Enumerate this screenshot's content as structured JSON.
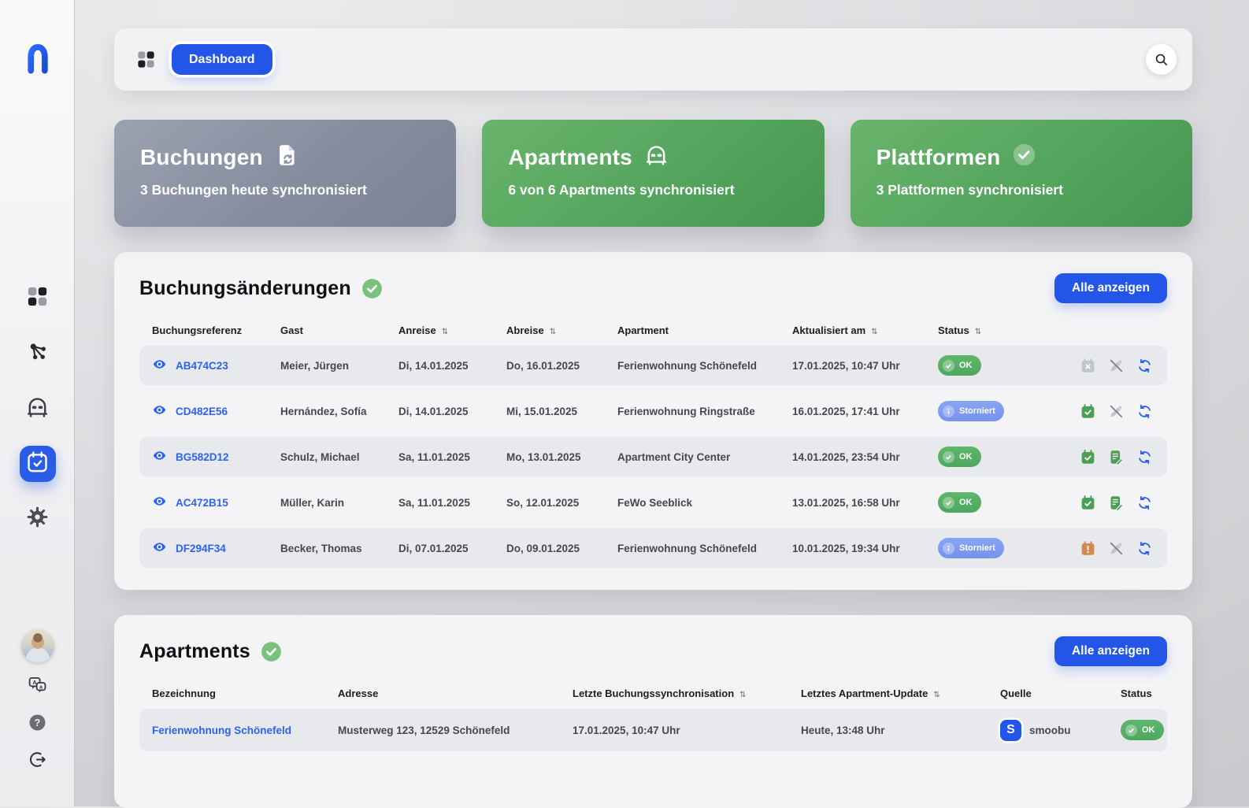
{
  "colors": {
    "accent_blue": "#2356e8",
    "link_blue": "#2d63f2",
    "green": "#4d9f58",
    "orange": "#cf8b50",
    "disabled_gray": "#c1c4ca",
    "sync_blue": "#2a62ee",
    "badge_green": "#57b168",
    "badge_storniert": "#7e9cf0",
    "card_slate": "#868d9e",
    "card_green": "#52a35c"
  },
  "sidebar": {
    "nav_items": [
      {
        "id": "dashboard",
        "icon": "grid-icon",
        "active": false
      },
      {
        "id": "connections",
        "icon": "network-icon",
        "active": false
      },
      {
        "id": "apartments",
        "icon": "bed-icon",
        "active": false
      },
      {
        "id": "bookings",
        "icon": "calendar-check-icon",
        "active": true
      },
      {
        "id": "settings",
        "icon": "gear-icon",
        "active": false
      }
    ],
    "bottom_items": [
      {
        "id": "profile",
        "icon": "avatar"
      },
      {
        "id": "language",
        "icon": "translate-icon"
      },
      {
        "id": "help",
        "icon": "help-icon"
      },
      {
        "id": "logout",
        "icon": "logout-icon"
      }
    ]
  },
  "header": {
    "nav_label": "Dashboard"
  },
  "stat_cards": [
    {
      "id": "buchungen",
      "variant": "slate",
      "title": "Buchungen",
      "icon": "document-sync-icon",
      "subtitle": "3 Buchungen heute synchronisiert"
    },
    {
      "id": "apartments",
      "variant": "green",
      "title": "Apartments",
      "icon": "bed-icon-white",
      "subtitle": "6 von 6 Apartments synchronisiert"
    },
    {
      "id": "plattformen",
      "variant": "green",
      "title": "Plattformen",
      "icon": "check-circle-icon",
      "subtitle": "3 Plattformen synchronisiert"
    }
  ],
  "bookings": {
    "title": "Buchungsänderungen",
    "action_label": "Alle anzeigen",
    "columns": [
      {
        "label": "Buchungsreferenz",
        "sortable": false
      },
      {
        "label": "Gast",
        "sortable": false
      },
      {
        "label": "Anreise",
        "sortable": true
      },
      {
        "label": "Abreise",
        "sortable": true
      },
      {
        "label": "Apartment",
        "sortable": false
      },
      {
        "label": "Aktualisiert am",
        "sortable": true
      },
      {
        "label": "Status",
        "sortable": true
      },
      {
        "label": "",
        "sortable": false
      }
    ],
    "rows": [
      {
        "ref": "AB474C23",
        "guest": "Meier, Jürgen",
        "arrival": "Di, 14.01.2025",
        "departure": "Do, 16.01.2025",
        "apartment": "Ferienwohnung Schönefeld",
        "updated": "17.01.2025, 10:47 Uhr",
        "status": {
          "label": "OK",
          "type": "ok"
        },
        "actions": [
          {
            "icon": "calendar-x-icon",
            "tone": "gray"
          },
          {
            "icon": "edit-off-icon",
            "tone": "gray"
          },
          {
            "icon": "sync-icon",
            "tone": "blue"
          }
        ]
      },
      {
        "ref": "CD482E56",
        "guest": "Hernández, Sofía",
        "arrival": "Di, 14.01.2025",
        "departure": "Mi, 15.01.2025",
        "apartment": "Ferienwohnung Ringstraße",
        "updated": "16.01.2025, 17:41 Uhr",
        "status": {
          "label": "Storniert",
          "type": "storniert"
        },
        "actions": [
          {
            "icon": "calendar-check-action-icon",
            "tone": "green"
          },
          {
            "icon": "edit-off-icon",
            "tone": "gray"
          },
          {
            "icon": "sync-icon",
            "tone": "blue"
          }
        ]
      },
      {
        "ref": "BG582D12",
        "guest": "Schulz, Michael",
        "arrival": "Sa, 11.01.2025",
        "departure": "Mo, 13.01.2025",
        "apartment": "Apartment City Center",
        "updated": "14.01.2025, 23:54 Uhr",
        "status": {
          "label": "OK",
          "type": "ok"
        },
        "actions": [
          {
            "icon": "calendar-check-action-icon",
            "tone": "green"
          },
          {
            "icon": "note-edit-icon",
            "tone": "green"
          },
          {
            "icon": "sync-icon",
            "tone": "blue"
          }
        ]
      },
      {
        "ref": "AC472B15",
        "guest": "Müller, Karin",
        "arrival": "Sa, 11.01.2025",
        "departure": "So, 12.01.2025",
        "apartment": "FeWo Seeblick",
        "updated": "13.01.2025, 16:58 Uhr",
        "status": {
          "label": "OK",
          "type": "ok"
        },
        "actions": [
          {
            "icon": "calendar-check-action-icon",
            "tone": "green"
          },
          {
            "icon": "note-edit-icon",
            "tone": "green"
          },
          {
            "icon": "sync-icon",
            "tone": "blue"
          }
        ]
      },
      {
        "ref": "DF294F34",
        "guest": "Becker, Thomas",
        "arrival": "Di, 07.01.2025",
        "departure": "Do, 09.01.2025",
        "apartment": "Ferienwohnung Schönefeld",
        "updated": "10.01.2025, 19:34 Uhr",
        "status": {
          "label": "Storniert",
          "type": "storniert"
        },
        "actions": [
          {
            "icon": "calendar-alert-icon",
            "tone": "orange"
          },
          {
            "icon": "edit-off-icon",
            "tone": "gray"
          },
          {
            "icon": "sync-icon",
            "tone": "blue"
          }
        ]
      }
    ]
  },
  "apartments": {
    "title": "Apartments",
    "action_label": "Alle anzeigen",
    "columns": [
      {
        "label": "Bezeichnung",
        "sortable": false
      },
      {
        "label": "Adresse",
        "sortable": false
      },
      {
        "label": "Letzte Buchungssynchronisation",
        "sortable": true
      },
      {
        "label": "Letztes Apartment-Update",
        "sortable": true
      },
      {
        "label": "Quelle",
        "sortable": false
      },
      {
        "label": "Status",
        "sortable": false
      }
    ],
    "rows": [
      {
        "name": "Ferienwohnung Schönefeld",
        "address": "Musterweg 123, 12529 Schönefeld",
        "last_booking_sync": "17.01.2025, 10:47 Uhr",
        "last_update": "Heute, 13:48 Uhr",
        "source": "smoobu",
        "source_logo": "S",
        "status": {
          "label": "OK",
          "type": "ok"
        }
      }
    ]
  }
}
